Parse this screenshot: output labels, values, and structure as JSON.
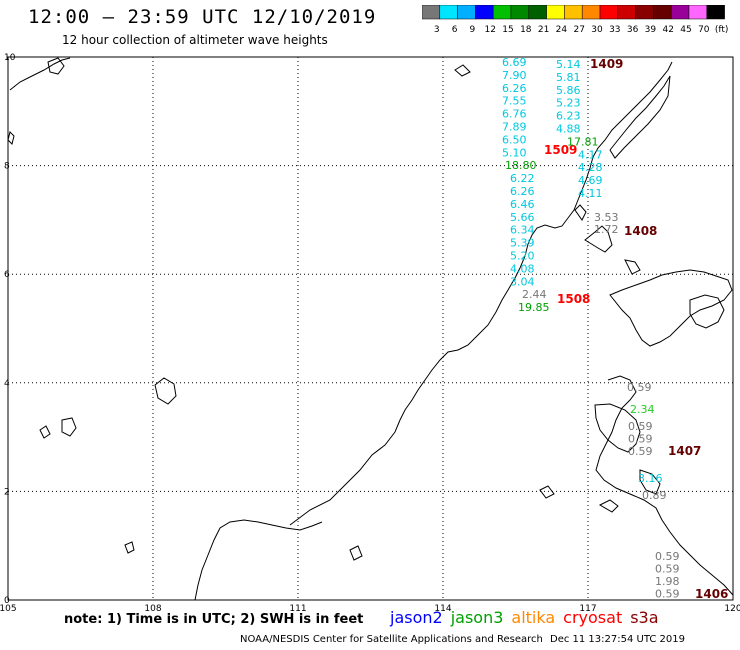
{
  "header": {
    "title": "12:00 – 23:59 UTC 12/10/2019",
    "subtitle": "12 hour collection of altimeter wave heights"
  },
  "colorbar": {
    "swatches": [
      "#777777",
      "#00e5ff",
      "#00b0ff",
      "#0000ff",
      "#00c000",
      "#008800",
      "#006000",
      "#ffff00",
      "#ffc000",
      "#ff8800",
      "#ff0000",
      "#cc0000",
      "#880000",
      "#660000",
      "#990099",
      "#ff66ff",
      "#000000"
    ],
    "labels": [
      "3",
      "6",
      "9",
      "12",
      "15",
      "18",
      "21",
      "24",
      "27",
      "30",
      "33",
      "36",
      "39",
      "42",
      "45",
      "70",
      "(ft)"
    ]
  },
  "axes": {
    "x_ticks": [
      "105",
      "108",
      "111",
      "114",
      "117",
      "120"
    ],
    "y_ticks": [
      "0",
      "2",
      "4",
      "6",
      "8",
      "10"
    ]
  },
  "tracks": {
    "jason3_cyan": [
      "6.69",
      "7.90",
      "6.26",
      "7.55",
      "6.76",
      "7.89",
      "6.50",
      "5.10"
    ],
    "jason3_green": [
      "18.80"
    ],
    "jason3_cyan2": [
      "6.22",
      "6.26",
      "6.46",
      "5.66",
      "6.34",
      "5.39",
      "5.20",
      "4.08",
      "3.04"
    ],
    "jason3_gray": [
      "2.44"
    ],
    "jason3_green2": [
      "19.85"
    ],
    "right_cyan": [
      "5.14",
      "5.81",
      "5.86",
      "5.23",
      "6.23",
      "4.88"
    ],
    "right_green": [
      "17.81"
    ],
    "right_cyan2": [
      "4.17",
      "4.28",
      "4.69",
      "4.11"
    ],
    "right_gray": [
      "3.53",
      "1.72"
    ],
    "south_gray1": [
      "0.59"
    ],
    "south_green": [
      "2.34"
    ],
    "south_gray2": [
      "0.59",
      "0.59",
      "0.59"
    ],
    "south_cyan": [
      "3.16"
    ],
    "south_gray3": [
      "0.89"
    ],
    "far_south_gray": [
      "0.59",
      "0.59",
      "1.98",
      "0.59"
    ]
  },
  "time_labels": {
    "t1409": "1409",
    "t1509": "1509",
    "t1408": "1408",
    "t1508": "1508",
    "t1407": "1407",
    "t1406": "1406"
  },
  "note": "note: 1) Time is in UTC; 2) SWH is in feet",
  "satellites": [
    {
      "name": "jason2",
      "color": "#0000ff"
    },
    {
      "name": "jason3",
      "color": "#00a000"
    },
    {
      "name": "altika",
      "color": "#ff8800"
    },
    {
      "name": "cryosat",
      "color": "#ff0000"
    },
    {
      "name": "s3a",
      "color": "#880000"
    }
  ],
  "footer": {
    "credit": "NOAA/NESDIS Center for Satellite Applications and Research",
    "timestamp": "Dec 11 13:27:54 UTC 2019"
  }
}
